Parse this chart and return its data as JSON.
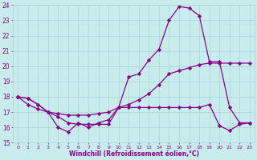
{
  "xlabel": "Windchill (Refroidissement éolien,°C)",
  "x": [
    0,
    1,
    2,
    3,
    4,
    5,
    6,
    7,
    8,
    9,
    10,
    11,
    12,
    13,
    14,
    15,
    16,
    17,
    18,
    19,
    20,
    21,
    22,
    23
  ],
  "line1": [
    18.0,
    17.9,
    17.5,
    17.0,
    16.0,
    15.7,
    16.3,
    16.0,
    16.3,
    16.5,
    17.3,
    17.3,
    17.3,
    17.3,
    17.3,
    17.3,
    17.3,
    17.3,
    17.3,
    17.5,
    16.1,
    15.8,
    16.2,
    16.3
  ],
  "line2": [
    18.0,
    17.5,
    17.2,
    17.0,
    16.9,
    16.8,
    16.8,
    16.8,
    16.9,
    17.0,
    17.3,
    17.5,
    17.8,
    18.2,
    18.8,
    19.5,
    19.7,
    19.9,
    20.1,
    20.2,
    20.2,
    20.2,
    20.2,
    20.2
  ],
  "line3": [
    18.0,
    17.9,
    17.5,
    17.0,
    16.7,
    16.3,
    16.2,
    16.2,
    16.2,
    16.2,
    17.3,
    19.3,
    19.5,
    20.4,
    21.1,
    23.0,
    23.9,
    23.8,
    23.3,
    20.3,
    20.3,
    17.3,
    16.3,
    16.3
  ],
  "ylim": [
    15,
    24
  ],
  "xlim": [
    -0.5,
    23.5
  ],
  "yticks": [
    15,
    16,
    17,
    18,
    19,
    20,
    21,
    22,
    23,
    24
  ],
  "xticks": [
    0,
    1,
    2,
    3,
    4,
    5,
    6,
    7,
    8,
    9,
    10,
    11,
    12,
    13,
    14,
    15,
    16,
    17,
    18,
    19,
    20,
    21,
    22,
    23
  ],
  "line_color": "#880088",
  "bg_color": "#c8ecec",
  "grid_color": "#a8d4d4",
  "tick_color": "#880088",
  "label_color": "#880088",
  "marker": "D",
  "markersize": 2.2,
  "linewidth": 0.9
}
